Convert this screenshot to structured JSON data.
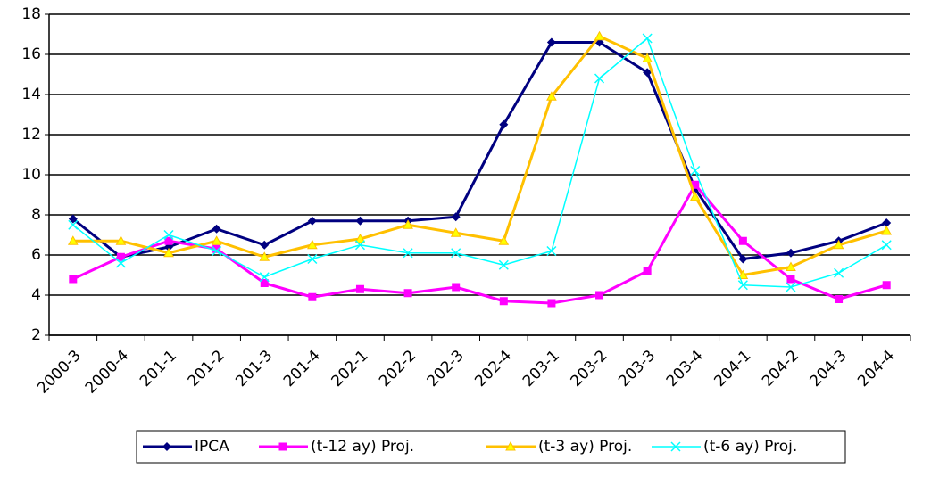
{
  "chart_data": {
    "type": "line",
    "categories": [
      "2000-3",
      "2000-4",
      "201-1",
      "201-2",
      "201-3",
      "201-4",
      "202-1",
      "202-2",
      "202-3",
      "202-4",
      "203-1",
      "203-2",
      "203-3",
      "203-4",
      "204-1",
      "204-2",
      "204-3",
      "204-4"
    ],
    "series": [
      {
        "name": "IPCA",
        "color": "#000080",
        "marker": "diamond",
        "values": [
          7.8,
          5.9,
          6.4,
          7.3,
          6.5,
          7.7,
          7.7,
          7.7,
          7.9,
          12.5,
          16.6,
          16.6,
          15.1,
          9.3,
          5.8,
          6.1,
          6.7,
          7.6
        ]
      },
      {
        "name": "(t-12 ay) Proj.",
        "color": "#ff00ff",
        "marker": "square",
        "values": [
          4.8,
          5.9,
          6.7,
          6.3,
          4.6,
          3.9,
          4.3,
          4.1,
          4.4,
          3.7,
          3.6,
          4.0,
          5.2,
          9.5,
          6.7,
          4.8,
          3.8,
          4.5
        ]
      },
      {
        "name": "(t-3 ay) Proj.",
        "color": "#ffc000",
        "marker": "triangle",
        "values": [
          6.7,
          6.7,
          6.1,
          6.7,
          5.9,
          6.5,
          6.8,
          7.5,
          7.1,
          6.7,
          13.9,
          16.9,
          15.8,
          8.9,
          5.0,
          5.4,
          6.5,
          7.2
        ]
      },
      {
        "name": "(t-6 ay) Proj.",
        "color": "#00ffff",
        "marker": "x",
        "values": [
          7.5,
          5.6,
          7.0,
          6.2,
          4.9,
          5.8,
          6.5,
          6.1,
          6.1,
          5.5,
          6.2,
          14.8,
          16.8,
          10.2,
          4.5,
          4.4,
          5.1,
          6.5
        ]
      }
    ],
    "ylim": [
      2,
      18
    ],
    "yticks": [
      2,
      4,
      6,
      8,
      10,
      12,
      14,
      16,
      18
    ],
    "grid": true,
    "legend": "bottom"
  }
}
